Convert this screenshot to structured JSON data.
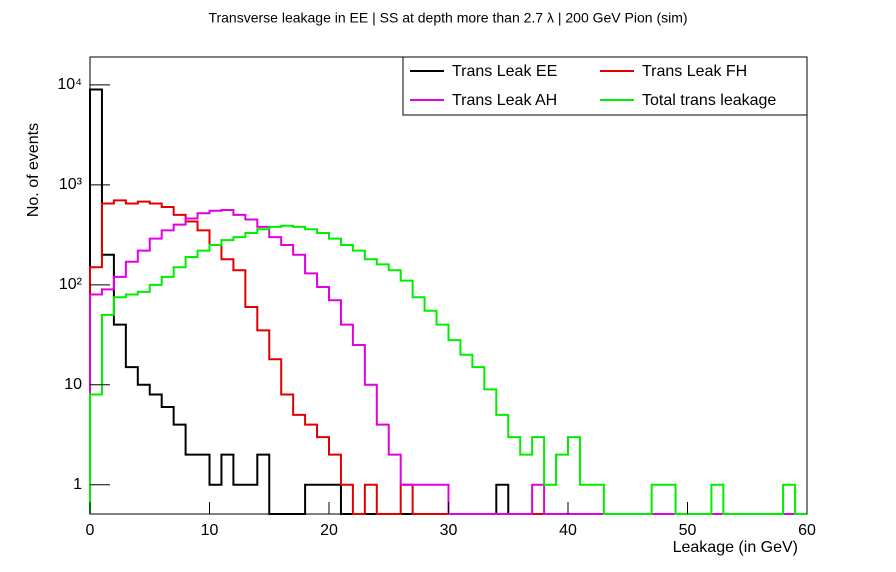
{
  "chart_data": {
    "type": "histogram",
    "title": "Transverse leakage in EE | SS at depth more than 2.7     λ | 200 GeV Pion (sim)",
    "x_label": "Leakage (in GeV)",
    "y_label": "No. of events",
    "log_y": true,
    "legend_position": "top-right",
    "bins": [
      0,
      1,
      2,
      3,
      4,
      5,
      6,
      7,
      8,
      9,
      10,
      11,
      12,
      13,
      14,
      15,
      16,
      17,
      18,
      19,
      20,
      21,
      22,
      23,
      24,
      25,
      26,
      27,
      28,
      29,
      30,
      31,
      32,
      33,
      34,
      35,
      36,
      37,
      38,
      39,
      40,
      41,
      42,
      43,
      44,
      45,
      46,
      47,
      48,
      49,
      50,
      51,
      52,
      53,
      54,
      55,
      56,
      57,
      58,
      59,
      60
    ],
    "xlim": [
      0,
      60
    ],
    "xticks": [
      0,
      10,
      20,
      30,
      40,
      50,
      60
    ],
    "ylim": [
      0.51,
      19000
    ],
    "yticks": [
      1,
      10,
      {
        "value": 100,
        "label": "10²"
      },
      {
        "value": 1000,
        "label": "10³"
      },
      {
        "value": 10000,
        "label": "10⁴"
      }
    ],
    "series": [
      {
        "name": "Trans Leak EE",
        "color": "#000000",
        "values": [
          9000,
          200,
          40,
          15,
          10,
          8,
          6,
          4,
          2,
          2,
          1,
          2,
          1,
          1,
          2,
          0,
          0,
          0,
          1,
          1,
          1,
          0,
          0,
          0,
          0,
          0,
          0,
          0,
          0,
          0,
          0,
          0,
          0,
          0,
          1,
          0,
          0,
          0,
          0,
          0,
          0,
          0,
          0,
          0,
          0,
          0,
          0,
          0,
          0,
          0,
          0,
          0,
          0,
          0,
          0,
          0,
          0,
          0,
          0,
          0
        ]
      },
      {
        "name": "Trans Leak FH",
        "color": "#e00000",
        "values": [
          150,
          650,
          700,
          650,
          680,
          650,
          600,
          500,
          430,
          350,
          250,
          180,
          140,
          60,
          35,
          18,
          8,
          5,
          4,
          3,
          2,
          1,
          0,
          1,
          0,
          0,
          1,
          0,
          0,
          0,
          0,
          0,
          0,
          0,
          0,
          0,
          0,
          0,
          0,
          0,
          0,
          0,
          0,
          0,
          0,
          0,
          0,
          0,
          0,
          0,
          0,
          0,
          0,
          0,
          0,
          0,
          0,
          0,
          0,
          0
        ]
      },
      {
        "name": "Trans Leak AH",
        "color": "#e000e0",
        "values": [
          80,
          90,
          120,
          170,
          220,
          290,
          350,
          400,
          460,
          520,
          550,
          560,
          500,
          450,
          380,
          300,
          250,
          200,
          130,
          95,
          70,
          40,
          25,
          10,
          4,
          2,
          1,
          1,
          1,
          1,
          0,
          0,
          0,
          0,
          0,
          0,
          0,
          1,
          0,
          0,
          0,
          0,
          0,
          0,
          0,
          0,
          0,
          0,
          0,
          0,
          0,
          0,
          0,
          0,
          0,
          0,
          0,
          0,
          0,
          0
        ]
      },
      {
        "name": "Total trans leakage",
        "color": "#00ee00",
        "values": [
          8,
          50,
          75,
          80,
          85,
          100,
          120,
          150,
          190,
          220,
          250,
          280,
          300,
          330,
          360,
          380,
          390,
          380,
          360,
          330,
          290,
          250,
          220,
          180,
          160,
          140,
          110,
          75,
          55,
          40,
          28,
          20,
          15,
          9,
          5,
          3,
          2,
          3,
          1,
          2,
          3,
          1,
          1,
          0,
          0,
          0,
          0,
          1,
          1,
          0,
          0,
          0,
          1,
          0,
          0,
          0,
          0,
          0,
          1,
          0
        ]
      }
    ]
  }
}
